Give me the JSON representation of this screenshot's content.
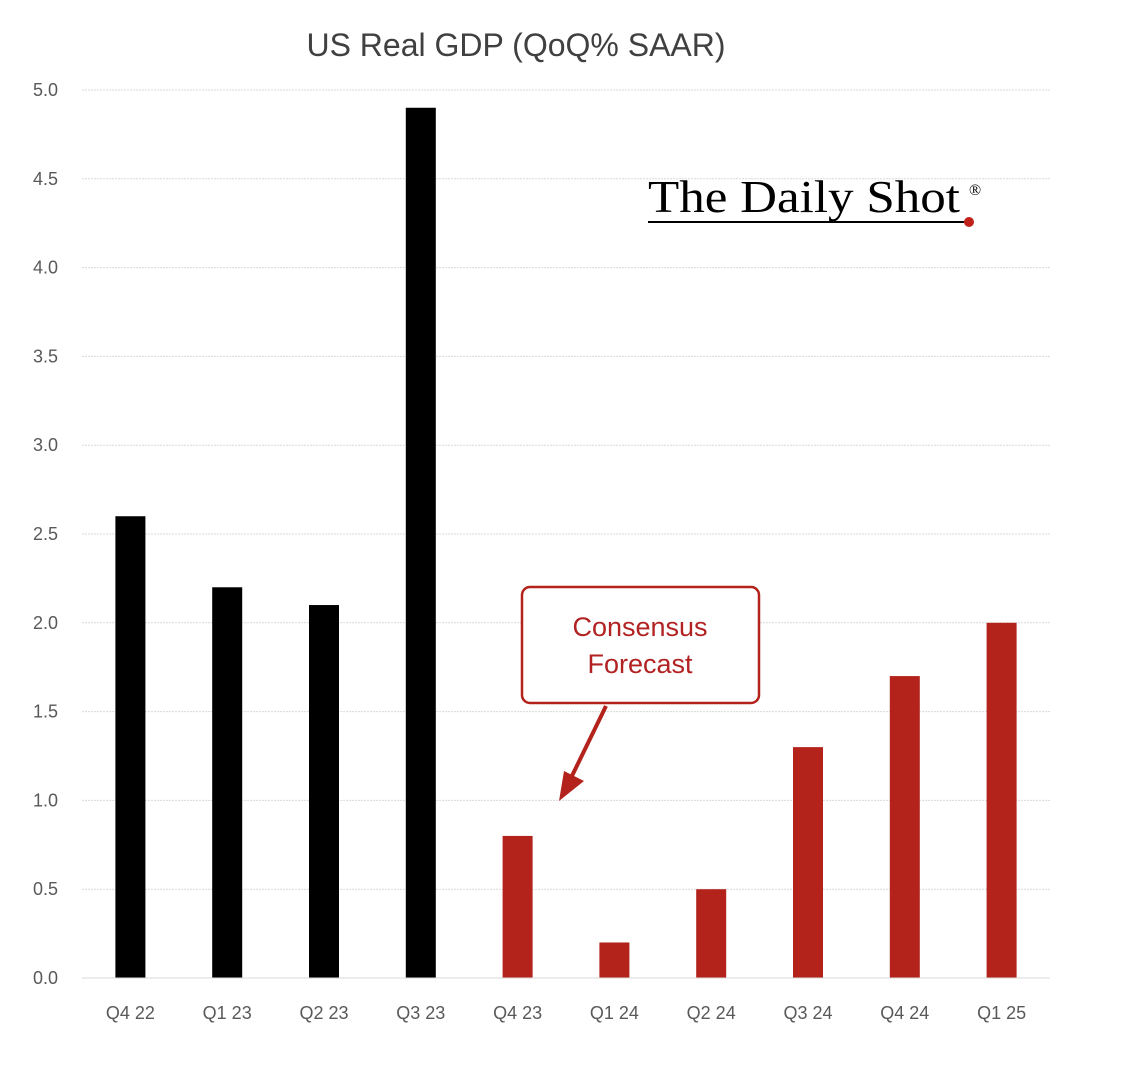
{
  "chart_data": {
    "type": "bar",
    "title": "US Real GDP (QoQ% SAAR)",
    "categories": [
      "Q4 22",
      "Q1 23",
      "Q2 23",
      "Q3 23",
      "Q4 23",
      "Q1 24",
      "Q2 24",
      "Q3 24",
      "Q4 24",
      "Q1 25"
    ],
    "series": [
      {
        "values": [
          2.6,
          2.2,
          2.1,
          4.9,
          null,
          null,
          null,
          null,
          null,
          null
        ],
        "color": "#000000"
      },
      {
        "values": [
          null,
          null,
          null,
          null,
          0.8,
          0.2,
          0.5,
          1.3,
          1.7,
          2.0
        ],
        "color": "#b3221b"
      }
    ],
    "yticks": [
      "0.0",
      "0.5",
      "1.0",
      "1.5",
      "2.0",
      "2.5",
      "3.0",
      "3.5",
      "4.0",
      "4.5",
      "5.0"
    ],
    "ylim": [
      0,
      5
    ],
    "grid": true,
    "legend": "none",
    "annotation": {
      "lines": [
        "Consensus",
        "Forecast"
      ],
      "color": "#b3221b",
      "target_category": "Q4 23"
    }
  },
  "logo": {
    "text": "The Daily Shot",
    "mark": "®"
  }
}
